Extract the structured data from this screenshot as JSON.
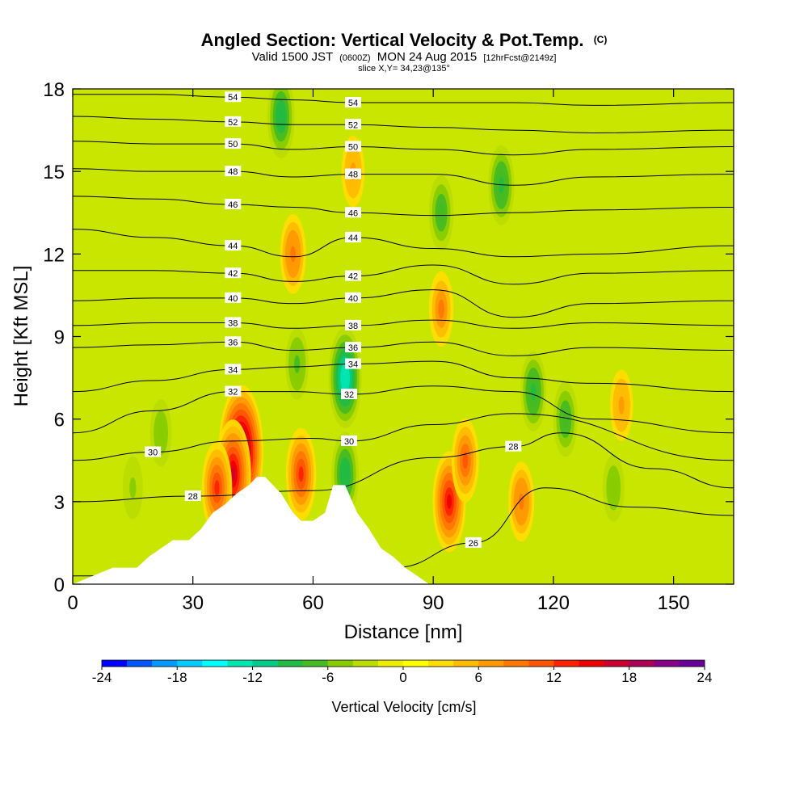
{
  "chart_data": {
    "type": "heatmap",
    "title": "Angled Section: Vertical Velocity & Pot.Temp.",
    "title_mark": "(C)",
    "subtitle_parts": [
      "Valid 1500 JST",
      "(0600Z)",
      "MON 24 Aug 2015",
      "[12hrFcst@2149z]"
    ],
    "subtitle2": "slice X,Y= 34,23@135°",
    "xlabel": "Distance [nm]",
    "ylabel": "Height [Kft MSL]",
    "xlim": [
      0,
      165
    ],
    "ylim": [
      0,
      18
    ],
    "xticks": [
      "0",
      "30",
      "60",
      "90",
      "120",
      "150"
    ],
    "yticks": [
      "0",
      "3",
      "6",
      "9",
      "12",
      "15",
      "18"
    ],
    "colorbar": {
      "label": "Vertical Velocity [cm/s]",
      "range": [
        -24,
        24
      ],
      "ticks": [
        "-24",
        "-18",
        "-12",
        "-6",
        "0",
        "6",
        "12",
        "18",
        "24"
      ],
      "colors": [
        "#0000ff",
        "#0055ff",
        "#0099ff",
        "#00ccff",
        "#00ffff",
        "#00e6b0",
        "#00cc88",
        "#22bb44",
        "#44bb22",
        "#88cc00",
        "#bbdd00",
        "#eeee00",
        "#ffff00",
        "#ffdd00",
        "#ffbb00",
        "#ff9900",
        "#ff7700",
        "#ff5500",
        "#ff2200",
        "#ee0000",
        "#cc0033",
        "#aa0055",
        "#880088",
        "#660099"
      ]
    },
    "isentrope_labels": [
      "26",
      "28",
      "30",
      "32",
      "34",
      "36",
      "38",
      "40",
      "42",
      "44",
      "46",
      "48",
      "50",
      "52",
      "54"
    ],
    "isentrope_levels_kft": [
      {
        "theta": 26,
        "x": [
          0,
          40,
          80,
          100,
          118,
          140,
          165
        ],
        "y": [
          0.3,
          0.4,
          0.6,
          1.5,
          3.5,
          2.8,
          2.5
        ]
      },
      {
        "theta": 28,
        "x": [
          0,
          30,
          60,
          90,
          110,
          122,
          145,
          165
        ],
        "y": [
          3.0,
          3.2,
          3.4,
          4.6,
          5.0,
          5.5,
          4.2,
          3.5
        ]
      },
      {
        "theta": 30,
        "x": [
          0,
          20,
          40,
          60,
          69,
          90,
          110,
          165
        ],
        "y": [
          4.5,
          4.8,
          5.2,
          5.3,
          5.2,
          5.8,
          6.2,
          4.5
        ]
      },
      {
        "theta": 32,
        "x": [
          0,
          20,
          40,
          55,
          69,
          90,
          110,
          130,
          165
        ],
        "y": [
          5.5,
          6.3,
          7.0,
          7.0,
          6.9,
          7.2,
          7.0,
          6.0,
          5.5
        ]
      },
      {
        "theta": 34,
        "x": [
          0,
          20,
          40,
          55,
          70,
          90,
          110,
          130,
          165
        ],
        "y": [
          7.0,
          7.4,
          7.8,
          7.9,
          8.0,
          8.1,
          7.5,
          7.3,
          7.0
        ]
      },
      {
        "theta": 36,
        "x": [
          0,
          20,
          40,
          55,
          70,
          90,
          110,
          130,
          165
        ],
        "y": [
          8.6,
          8.7,
          8.8,
          8.5,
          8.6,
          8.8,
          8.3,
          8.6,
          8.5
        ]
      },
      {
        "theta": 38,
        "x": [
          0,
          20,
          40,
          55,
          70,
          90,
          110,
          130,
          165
        ],
        "y": [
          9.4,
          9.5,
          9.5,
          9.3,
          9.4,
          9.6,
          9.3,
          9.5,
          9.4
        ]
      },
      {
        "theta": 40,
        "x": [
          0,
          20,
          40,
          55,
          70,
          90,
          110,
          130,
          165
        ],
        "y": [
          10.3,
          10.4,
          10.4,
          10.2,
          10.4,
          10.7,
          9.7,
          10.2,
          10.3
        ]
      },
      {
        "theta": 42,
        "x": [
          0,
          20,
          40,
          55,
          70,
          90,
          110,
          130,
          165
        ],
        "y": [
          11.4,
          11.4,
          11.3,
          11.0,
          11.2,
          11.6,
          10.9,
          11.3,
          11.4
        ]
      },
      {
        "theta": 44,
        "x": [
          0,
          20,
          40,
          55,
          70,
          90,
          110,
          130,
          165
        ],
        "y": [
          12.9,
          12.6,
          12.3,
          11.9,
          12.6,
          12.2,
          11.9,
          12.0,
          12.3
        ]
      },
      {
        "theta": 46,
        "x": [
          0,
          20,
          40,
          55,
          70,
          90,
          110,
          130,
          165
        ],
        "y": [
          14.1,
          14.0,
          13.8,
          13.7,
          13.5,
          13.4,
          13.5,
          13.6,
          13.7
        ]
      },
      {
        "theta": 48,
        "x": [
          0,
          20,
          40,
          55,
          70,
          90,
          110,
          130,
          165
        ],
        "y": [
          15.1,
          15.0,
          15.0,
          14.8,
          14.9,
          14.9,
          14.5,
          14.8,
          14.9
        ]
      },
      {
        "theta": 50,
        "x": [
          0,
          20,
          40,
          55,
          70,
          90,
          110,
          130,
          165
        ],
        "y": [
          16.1,
          16.0,
          16.0,
          15.8,
          15.9,
          15.8,
          15.6,
          15.8,
          15.9
        ]
      },
      {
        "theta": 52,
        "x": [
          0,
          20,
          40,
          55,
          70,
          90,
          110,
          130,
          165
        ],
        "y": [
          17.0,
          16.9,
          16.8,
          16.7,
          16.7,
          16.6,
          16.5,
          16.4,
          16.5
        ]
      },
      {
        "theta": 54,
        "x": [
          0,
          20,
          40,
          55,
          70,
          90,
          110,
          130,
          165
        ],
        "y": [
          17.8,
          17.8,
          17.7,
          17.6,
          17.5,
          17.5,
          17.5,
          17.4,
          17.5
        ]
      }
    ],
    "terrain_kft": {
      "x": [
        0,
        10,
        16,
        19,
        22,
        25,
        29,
        32,
        35,
        38,
        41,
        44,
        46,
        48,
        52,
        55,
        57,
        60,
        63,
        65,
        68,
        71,
        74,
        77,
        80,
        83,
        86,
        89,
        91,
        165
      ],
      "y": [
        0,
        0.6,
        0.6,
        1.0,
        1.3,
        1.6,
        1.6,
        2.0,
        2.6,
        2.9,
        3.3,
        3.6,
        3.9,
        3.9,
        3.3,
        2.6,
        2.3,
        2.3,
        2.6,
        3.6,
        3.6,
        2.6,
        2.0,
        1.3,
        1.0,
        0.6,
        0.3,
        0,
        0,
        0
      ]
    },
    "vertical_velocity_cells_cms": [
      {
        "x": 42,
        "z": 4.8,
        "w": 22
      },
      {
        "x": 40,
        "z": 4.0,
        "w": 16
      },
      {
        "x": 36,
        "z": 3.5,
        "w": 12
      },
      {
        "x": 57,
        "z": 4.0,
        "w": 12
      },
      {
        "x": 94,
        "z": 3.0,
        "w": 14
      },
      {
        "x": 98,
        "z": 4.5,
        "w": 10
      },
      {
        "x": 112,
        "z": 3.0,
        "w": 9
      },
      {
        "x": 55,
        "z": 12.0,
        "w": 9
      },
      {
        "x": 70,
        "z": 15.0,
        "w": 7
      },
      {
        "x": 92,
        "z": 10.0,
        "w": 8
      },
      {
        "x": 137,
        "z": 6.5,
        "w": 7
      },
      {
        "x": 68,
        "z": 7.5,
        "w": -14
      },
      {
        "x": 68,
        "z": 4.0,
        "w": -10
      },
      {
        "x": 52,
        "z": 17.0,
        "w": -10
      },
      {
        "x": 92,
        "z": 13.5,
        "w": -8
      },
      {
        "x": 107,
        "z": 14.5,
        "w": -9
      },
      {
        "x": 115,
        "z": 7.0,
        "w": -9
      },
      {
        "x": 123,
        "z": 6.0,
        "w": -8
      },
      {
        "x": 135,
        "z": 3.5,
        "w": -6
      },
      {
        "x": 56,
        "z": 8.0,
        "w": -7
      },
      {
        "x": 22,
        "z": 5.5,
        "w": -6
      },
      {
        "x": 15,
        "z": 3.5,
        "w": -5
      }
    ]
  }
}
